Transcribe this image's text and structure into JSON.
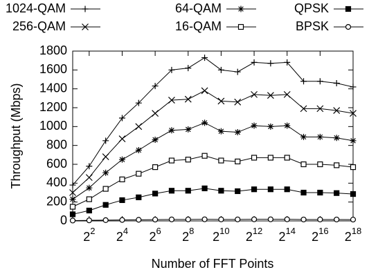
{
  "chart_data": {
    "type": "line",
    "y_label": "Throughput (Mbps)",
    "x_label": "Number of FFT Points",
    "log_x": true,
    "log_base": 2,
    "x": [
      2,
      4,
      8,
      16,
      32,
      64,
      128,
      256,
      512,
      1024,
      2048,
      4096,
      8192,
      16384,
      32768,
      65536,
      131072,
      262144
    ],
    "xlim": [
      2,
      262144
    ],
    "xticks": [
      {
        "value": 4,
        "label": "2^2"
      },
      {
        "value": 16,
        "label": "2^4"
      },
      {
        "value": 64,
        "label": "2^6"
      },
      {
        "value": 256,
        "label": "2^8"
      },
      {
        "value": 1024,
        "label": "2^10"
      },
      {
        "value": 4096,
        "label": "2^12"
      },
      {
        "value": 16384,
        "label": "2^14"
      },
      {
        "value": 65536,
        "label": "2^16"
      },
      {
        "value": 262144,
        "label": "2^18"
      }
    ],
    "ylim": [
      0,
      1800
    ],
    "yticks": [
      0,
      200,
      400,
      600,
      800,
      1000,
      1200,
      1400,
      1600,
      1800
    ],
    "legend": "top",
    "series": [
      {
        "name": "1024-QAM",
        "color": "#000000",
        "marker": "plus",
        "values": [
          380,
          580,
          850,
          1090,
          1250,
          1430,
          1600,
          1620,
          1730,
          1600,
          1580,
          1680,
          1670,
          1680,
          1480,
          1480,
          1460,
          1420
        ]
      },
      {
        "name": "256-QAM",
        "color": "#000000",
        "marker": "cross",
        "values": [
          300,
          460,
          680,
          870,
          1000,
          1140,
          1280,
          1290,
          1380,
          1270,
          1260,
          1340,
          1330,
          1340,
          1190,
          1190,
          1170,
          1140
        ]
      },
      {
        "name": "64-QAM",
        "color": "#000000",
        "marker": "star",
        "values": [
          230,
          350,
          510,
          650,
          750,
          860,
          960,
          970,
          1040,
          950,
          940,
          1010,
          1000,
          1010,
          890,
          890,
          880,
          850
        ]
      },
      {
        "name": "16-QAM",
        "color": "#000000",
        "marker": "square-open",
        "values": [
          150,
          230,
          340,
          440,
          500,
          570,
          640,
          650,
          690,
          640,
          630,
          670,
          670,
          670,
          600,
          600,
          590,
          570
        ]
      },
      {
        "name": "QPSK",
        "color": "#000000",
        "marker": "square-filled",
        "values": [
          70,
          110,
          170,
          220,
          250,
          290,
          320,
          320,
          345,
          320,
          315,
          335,
          335,
          335,
          300,
          300,
          295,
          285
        ]
      },
      {
        "name": "BPSK",
        "color": "#000000",
        "marker": "circle-open",
        "values": [
          4,
          6,
          8,
          10,
          12,
          14,
          16,
          16,
          17,
          16,
          16,
          17,
          17,
          17,
          15,
          15,
          15,
          14
        ]
      }
    ]
  }
}
